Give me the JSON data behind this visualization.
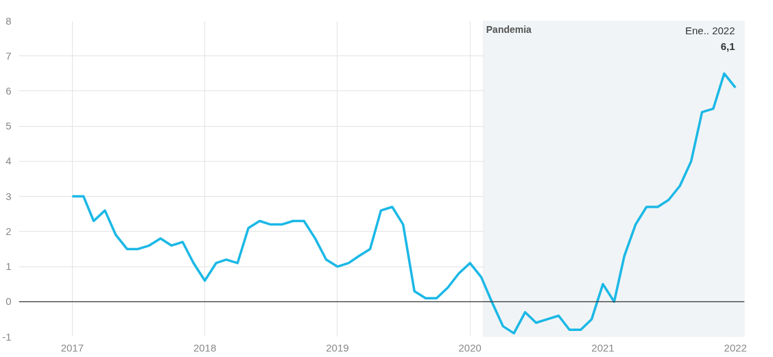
{
  "chart_data": {
    "type": "line",
    "x": [
      "2017-01",
      "2017-02",
      "2017-03",
      "2017-04",
      "2017-05",
      "2017-06",
      "2017-07",
      "2017-08",
      "2017-09",
      "2017-10",
      "2017-11",
      "2017-12",
      "2018-01",
      "2018-02",
      "2018-03",
      "2018-04",
      "2018-05",
      "2018-06",
      "2018-07",
      "2018-08",
      "2018-09",
      "2018-10",
      "2018-11",
      "2018-12",
      "2019-01",
      "2019-02",
      "2019-03",
      "2019-04",
      "2019-05",
      "2019-06",
      "2019-07",
      "2019-08",
      "2019-09",
      "2019-10",
      "2019-11",
      "2019-12",
      "2020-01",
      "2020-02",
      "2020-03",
      "2020-04",
      "2020-05",
      "2020-06",
      "2020-07",
      "2020-08",
      "2020-09",
      "2020-10",
      "2020-11",
      "2020-12",
      "2021-01",
      "2021-02",
      "2021-03",
      "2021-04",
      "2021-05",
      "2021-06",
      "2021-07",
      "2021-08",
      "2021-09",
      "2021-10",
      "2021-11",
      "2021-12",
      "2022-01"
    ],
    "series": [
      {
        "color": "#1bb8e6",
        "values": [
          3.0,
          3.0,
          2.3,
          2.6,
          1.9,
          1.5,
          1.5,
          1.6,
          1.8,
          1.6,
          1.7,
          1.1,
          0.6,
          1.1,
          1.2,
          1.1,
          2.1,
          2.3,
          2.2,
          2.2,
          2.3,
          2.3,
          1.8,
          1.2,
          1.0,
          1.1,
          1.3,
          1.5,
          2.6,
          2.7,
          2.2,
          0.3,
          0.1,
          0.1,
          0.4,
          0.8,
          1.1,
          0.7,
          0.0,
          -0.7,
          -0.9,
          -0.3,
          -0.6,
          -0.5,
          -0.4,
          -0.8,
          -0.8,
          -0.5,
          0.5,
          0.0,
          1.3,
          2.2,
          2.7,
          2.7,
          2.9,
          3.3,
          4.0,
          5.4,
          5.5,
          6.5,
          6.1
        ]
      }
    ],
    "xlim": [
      "2016-08-07",
      "2022-01-26"
    ],
    "xticks": [
      "2017",
      "2018",
      "2019",
      "2020",
      "2021",
      "2022"
    ],
    "ylim": [
      -1,
      8
    ],
    "yticks": [
      -1,
      0,
      1,
      2,
      3,
      4,
      5,
      6,
      7,
      8
    ],
    "grid": true,
    "bands": [
      {
        "axis": "x",
        "from": "2020-02-07",
        "to": "2022-01-26",
        "label": "Pandemia",
        "color": "#f1f4f6"
      }
    ],
    "ref_lines": [
      {
        "axis": "y",
        "value": 0,
        "color": "#333333"
      }
    ],
    "annotations": [
      "Ene.. 2022",
      "6,1"
    ]
  }
}
